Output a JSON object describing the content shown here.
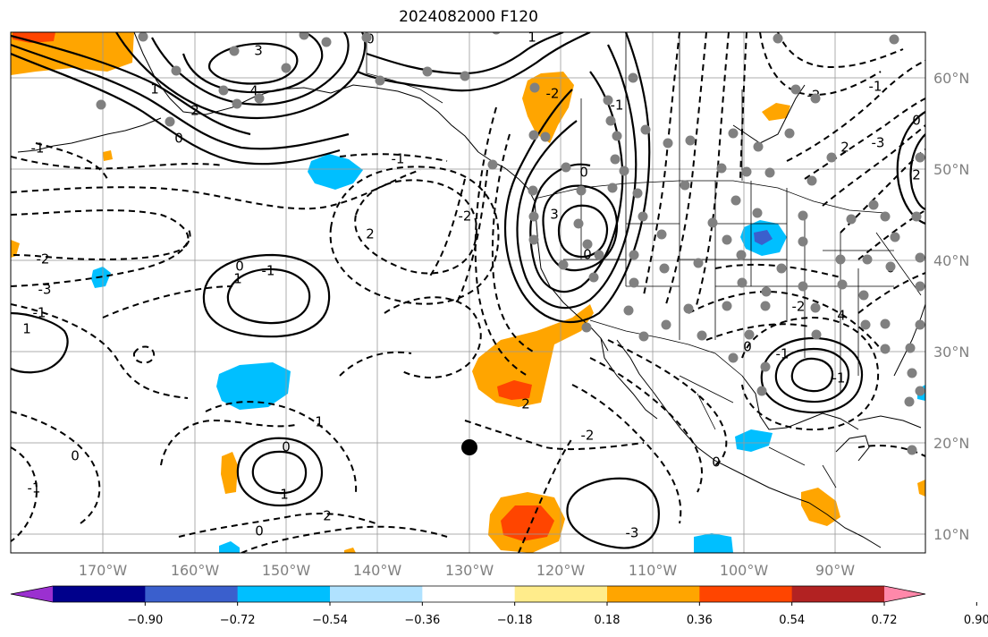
{
  "title": "2024082000 F120",
  "lon_labels": [
    "170°W",
    "160°W",
    "150°W",
    "140°W",
    "130°W",
    "120°W",
    "110°W",
    "100°W",
    "90°W"
  ],
  "lat_labels": [
    "60°N",
    "50°N",
    "40°N",
    "30°N",
    "20°N",
    "10°N"
  ],
  "colorbar": {
    "tick_labels": [
      "−0.90",
      "−0.72",
      "−0.54",
      "−0.36",
      "−0.18",
      "0.18",
      "0.36",
      "0.54",
      "0.72",
      "0.90"
    ],
    "colors": [
      "#9b30d0",
      "#00008b",
      "#3a5fcd",
      "#00bfff",
      "#b0e2ff",
      "#ffffff",
      "#ffec8b",
      "#ffa500",
      "#ff4500",
      "#b22222",
      "#ff88aa"
    ]
  },
  "contour_labels": [
    "3",
    "1",
    "2",
    "0",
    "-1",
    "-2",
    "-3",
    "4",
    "1",
    "0",
    "-1",
    "2",
    "-2",
    "-1",
    "0",
    "1",
    "0",
    "-1",
    "2",
    "1",
    "0",
    "2",
    "-2",
    "-3",
    "0",
    "-2",
    "1",
    "3",
    "-1",
    "0",
    "0",
    "-1",
    "1",
    "0",
    "-1",
    "0",
    "-2",
    "-1",
    "4",
    "-1",
    "2",
    "0",
    "2",
    "-2",
    "0",
    "-3"
  ],
  "shading_colors": {
    "orange": "#ffa500",
    "red": "#ff4500",
    "sky": "#00bfff",
    "blue": "#3a5fcd"
  }
}
